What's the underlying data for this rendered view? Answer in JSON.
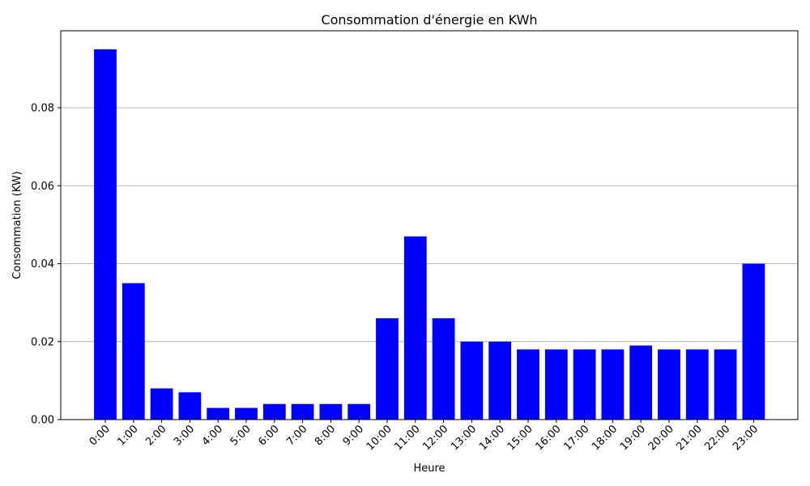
{
  "chart_data": {
    "type": "bar",
    "title": "Consommation d'énergie en KWh",
    "xlabel": "Heure",
    "ylabel": "Consommation (KW)",
    "categories": [
      "0:00",
      "1:00",
      "2:00",
      "3:00",
      "4:00",
      "5:00",
      "6:00",
      "7:00",
      "8:00",
      "9:00",
      "10:00",
      "11:00",
      "12:00",
      "13:00",
      "14:00",
      "15:00",
      "16:00",
      "17:00",
      "18:00",
      "19:00",
      "20:00",
      "21:00",
      "22:00",
      "23:00"
    ],
    "values": [
      0.095,
      0.035,
      0.008,
      0.007,
      0.003,
      0.003,
      0.004,
      0.004,
      0.004,
      0.004,
      0.026,
      0.047,
      0.026,
      0.02,
      0.02,
      0.018,
      0.018,
      0.018,
      0.018,
      0.019,
      0.018,
      0.018,
      0.018,
      0.04
    ],
    "yticks": [
      "0.00",
      "0.02",
      "0.04",
      "0.06",
      "0.08"
    ],
    "ylim": [
      0,
      0.09975
    ],
    "grid": "horizontal",
    "bar_color": "#0000ff",
    "xtick_rotation": "45deg"
  }
}
